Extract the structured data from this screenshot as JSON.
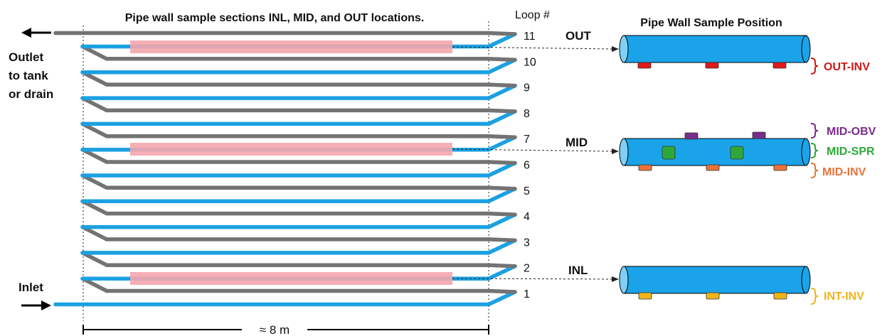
{
  "title": "Pipe wall sample sections INL, MID, and OUT locations.",
  "loop_header": "Loop #",
  "loops": [
    "1",
    "2",
    "3",
    "4",
    "5",
    "6",
    "7",
    "8",
    "9",
    "10",
    "11"
  ],
  "outlet_label": [
    "Outlet",
    "to tank",
    "or drain"
  ],
  "inlet_label": "Inlet",
  "length_label": "≈ 8 m",
  "locations": {
    "out": "OUT",
    "mid": "MID",
    "inl": "INL"
  },
  "right_title": "Pipe Wall Sample Position",
  "sample_labels": {
    "out_inv": "OUT-INV",
    "mid_obv": "MID-OBV",
    "mid_spr": "MID-SPR",
    "mid_inv": "MID-INV",
    "int_inv": "INT-INV"
  },
  "colors": {
    "blue_pipe": "#1ba1e2",
    "grey_pipe": "#737373",
    "sample_band": "#f4a6ad",
    "cylinder": "#1aa3e8",
    "out_inv": "#e01a1a",
    "mid_obv": "#7a2c8e",
    "mid_spr": "#2ea83a",
    "mid_inv": "#e8733a",
    "int_inv": "#f0b41a"
  },
  "icons": {
    "outlet_arrow": "arrow-left-icon",
    "inlet_arrow": "arrow-right-icon"
  }
}
